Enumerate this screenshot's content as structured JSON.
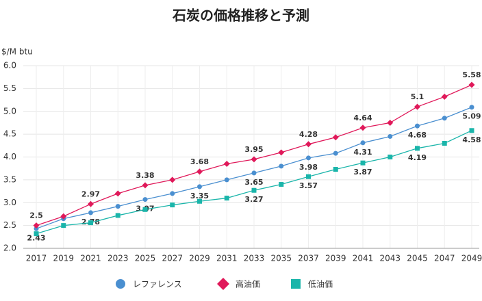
{
  "chart_data": {
    "type": "line",
    "title": "石炭の価格推移と予測",
    "y_label": "$/M btu",
    "categories": [
      "2017",
      "2019",
      "2021",
      "2023",
      "2025",
      "2027",
      "2029",
      "2031",
      "2033",
      "2035",
      "2037",
      "2039",
      "2041",
      "2043",
      "2045",
      "2047",
      "2049"
    ],
    "series": [
      {
        "name": "レファレンス",
        "color": "#4a8fd0",
        "marker": "circle",
        "values": [
          2.43,
          2.65,
          2.78,
          2.92,
          3.07,
          3.2,
          3.35,
          3.5,
          3.65,
          3.8,
          3.98,
          4.08,
          4.31,
          4.45,
          4.68,
          4.85,
          5.09
        ],
        "value_labels": [
          "2.43",
          null,
          "2.78",
          null,
          "3.07",
          null,
          "3.35",
          null,
          "3.65",
          null,
          "3.98",
          null,
          "4.31",
          null,
          "4.68",
          null,
          "5.09"
        ]
      },
      {
        "name": "高油価",
        "color": "#e0195a",
        "marker": "diamond",
        "values": [
          2.5,
          2.7,
          2.97,
          3.2,
          3.38,
          3.5,
          3.68,
          3.85,
          3.95,
          4.1,
          4.28,
          4.43,
          4.64,
          4.75,
          5.1,
          5.32,
          5.58
        ],
        "value_labels": [
          "2.5",
          null,
          "2.97",
          null,
          "3.38",
          null,
          "3.68",
          null,
          "3.95",
          null,
          "4.28",
          null,
          "4.64",
          null,
          "5.1",
          null,
          "5.58"
        ]
      },
      {
        "name": "低油価",
        "color": "#1ab5aa",
        "marker": "square",
        "values": [
          2.32,
          2.5,
          2.56,
          2.72,
          2.85,
          2.95,
          3.03,
          3.1,
          3.27,
          3.4,
          3.57,
          3.73,
          3.87,
          4.0,
          4.19,
          4.3,
          4.58
        ],
        "value_labels": [
          null,
          null,
          null,
          null,
          null,
          null,
          null,
          null,
          "3.27",
          null,
          "3.57",
          null,
          "3.87",
          null,
          "4.19",
          null,
          "4.58"
        ]
      }
    ],
    "ylim": [
      2,
      6
    ],
    "yticks": [
      {
        "value": 2,
        "label": "2.0"
      },
      {
        "value": 2.5,
        "label": "2.5"
      },
      {
        "value": 3,
        "label": "3.0"
      },
      {
        "value": 3.5,
        "label": "3.5"
      },
      {
        "value": 4,
        "label": "4.0"
      },
      {
        "value": 4.5,
        "label": "4.5"
      },
      {
        "value": 5,
        "label": "5.0"
      },
      {
        "value": 5.5,
        "label": "5.5"
      },
      {
        "value": 6,
        "label": "6.0"
      }
    ],
    "grid": true,
    "legend": "bottom"
  }
}
